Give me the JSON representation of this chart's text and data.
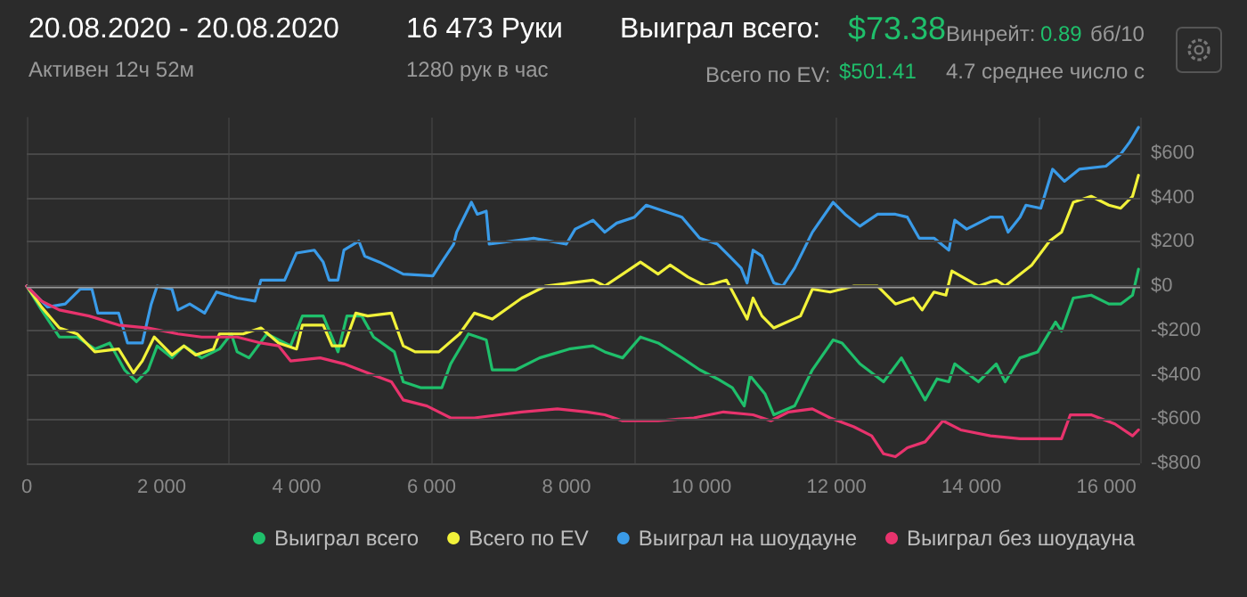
{
  "chart_data": {
    "type": "line",
    "title": "20.08.2020 - 20.08.2020",
    "subtitle": "Активен 12ч 52м",
    "annotations": [
      "16 473 Руки",
      "1280 рук в час",
      "Выиграл всего:",
      "$73.38",
      "Всего по EV:",
      "$501.41",
      "Винрейт:",
      "0.89",
      "бб/10",
      "4.7 среднее число с"
    ],
    "xlim": [
      0,
      16500
    ],
    "xticks": [
      0,
      {
        "value": 2000,
        "label": "2 000"
      },
      {
        "value": 4000,
        "label": "4 000"
      },
      {
        "value": 6000,
        "label": "6 000"
      },
      {
        "value": 8000,
        "label": "8 000"
      },
      {
        "value": 10000,
        "label": "10 000"
      },
      {
        "value": 12000,
        "label": "12 000"
      },
      {
        "value": 14000,
        "label": "14 000"
      },
      {
        "value": 16000,
        "label": "16 000"
      }
    ],
    "ylim": [
      -800,
      760
    ],
    "yticks": [
      {
        "value": -800,
        "label": "-$800"
      },
      {
        "value": -600,
        "label": "-$600"
      },
      {
        "value": -400,
        "label": "-$400"
      },
      {
        "value": -200,
        "label": "-$200"
      },
      {
        "value": 0,
        "label": "$0"
      },
      {
        "value": 200,
        "label": "$200"
      },
      {
        "value": 400,
        "label": "$400"
      },
      {
        "value": 600,
        "label": "$600"
      }
    ],
    "grid": true,
    "legend": "bottom",
    "line_style": "solid",
    "ref_lines": [
      {
        "axis": "y",
        "value": 0,
        "color": "#9a9a9a"
      }
    ],
    "series": [
      {
        "name": "Выиграл всего",
        "color": "#1fbf6b",
        "x": [
          0,
          220,
          483,
          747,
          1010,
          1230,
          1450,
          1626,
          1801,
          1933,
          2153,
          2329,
          2592,
          2856,
          3032,
          3119,
          3295,
          3559,
          3910,
          4086,
          4394,
          4613,
          4745,
          4965,
          5140,
          5448,
          5580,
          5844,
          6151,
          6283,
          6546,
          6810,
          6898,
          7249,
          7601,
          8040,
          8392,
          8567,
          8831,
          9095,
          9358,
          9710,
          9973,
          10237,
          10457,
          10633,
          10720,
          10940,
          11072,
          11380,
          11643,
          11951,
          12083,
          12347,
          12698,
          12962,
          13314,
          13490,
          13665,
          13753,
          14105,
          14368,
          14500,
          14720,
          14983,
          15247,
          15335,
          15510,
          15774,
          16037,
          16212,
          16388,
          16476
        ],
        "values": [
          0,
          -108,
          -230,
          -230,
          -284,
          -257,
          -378,
          -432,
          -378,
          -270,
          -324,
          -270,
          -324,
          -284,
          -216,
          -297,
          -324,
          -216,
          -270,
          -135,
          -135,
          -297,
          -135,
          -135,
          -230,
          -297,
          -432,
          -459,
          -459,
          -351,
          -216,
          -243,
          -378,
          -378,
          -324,
          -284,
          -270,
          -297,
          -324,
          -230,
          -257,
          -324,
          -378,
          -419,
          -459,
          -541,
          -405,
          -486,
          -581,
          -541,
          -378,
          -243,
          -257,
          -351,
          -432,
          -324,
          -514,
          -419,
          -432,
          -351,
          -432,
          -351,
          -432,
          -324,
          -297,
          -162,
          -203,
          -54,
          -41,
          -81,
          -81,
          -41,
          76
        ]
      },
      {
        "name": "Всего по EV",
        "color": "#f2f23a",
        "x": [
          0,
          220,
          483,
          747,
          1010,
          1362,
          1582,
          1713,
          1889,
          2153,
          2329,
          2504,
          2768,
          2856,
          3207,
          3471,
          3734,
          3998,
          4086,
          4394,
          4526,
          4701,
          4877,
          5053,
          5404,
          5580,
          5756,
          6107,
          6415,
          6634,
          6898,
          7337,
          7689,
          8040,
          8392,
          8567,
          8831,
          9095,
          9358,
          9534,
          9798,
          10061,
          10369,
          10676,
          10764,
          10896,
          11072,
          11467,
          11643,
          11907,
          12258,
          12610,
          12874,
          13138,
          13270,
          13446,
          13622,
          13710,
          14105,
          14368,
          14500,
          14895,
          15159,
          15335,
          15510,
          15774,
          16037,
          16212,
          16388,
          16476
        ],
        "values": [
          0,
          -95,
          -189,
          -216,
          -297,
          -284,
          -392,
          -338,
          -230,
          -311,
          -270,
          -311,
          -284,
          -216,
          -216,
          -189,
          -257,
          -284,
          -176,
          -176,
          -270,
          -270,
          -122,
          -135,
          -122,
          -270,
          -297,
          -297,
          -216,
          -122,
          -149,
          -54,
          0,
          14,
          27,
          0,
          54,
          108,
          54,
          95,
          41,
          0,
          27,
          -149,
          -54,
          -135,
          -189,
          -135,
          -14,
          -27,
          0,
          0,
          -81,
          -54,
          -108,
          -27,
          -41,
          68,
          0,
          27,
          0,
          95,
          203,
          243,
          378,
          405,
          365,
          351,
          405,
          500
        ]
      },
      {
        "name": "Выиграл на шоудауне",
        "color": "#3a9be8",
        "x": [
          0,
          308,
          571,
          791,
          967,
          1054,
          1362,
          1494,
          1713,
          1845,
          1933,
          2153,
          2241,
          2416,
          2636,
          2812,
          3119,
          3383,
          3471,
          3822,
          3998,
          4262,
          4394,
          4481,
          4613,
          4701,
          4921,
          5009,
          5228,
          5580,
          6019,
          6151,
          6327,
          6371,
          6590,
          6678,
          6810,
          6854,
          7513,
          7996,
          8128,
          8392,
          8567,
          8743,
          9007,
          9182,
          9446,
          9710,
          9973,
          10237,
          10413,
          10588,
          10676,
          10764,
          10896,
          11072,
          11204,
          11380,
          11643,
          11951,
          12127,
          12347,
          12610,
          12874,
          13050,
          13226,
          13446,
          13665,
          13753,
          13929,
          14281,
          14456,
          14544,
          14720,
          14808,
          15028,
          15203,
          15378,
          15598,
          15993,
          16212,
          16344,
          16476
        ],
        "values": [
          0,
          -95,
          -81,
          -14,
          -14,
          -122,
          -122,
          -257,
          -257,
          -81,
          0,
          -14,
          -108,
          -81,
          -122,
          -27,
          -54,
          -68,
          27,
          27,
          149,
          162,
          108,
          27,
          27,
          162,
          203,
          135,
          108,
          54,
          46,
          108,
          189,
          243,
          378,
          324,
          338,
          189,
          216,
          189,
          257,
          297,
          243,
          284,
          311,
          365,
          338,
          311,
          216,
          189,
          135,
          81,
          14,
          162,
          135,
          14,
          0,
          81,
          243,
          378,
          324,
          270,
          324,
          324,
          311,
          216,
          216,
          162,
          297,
          257,
          311,
          311,
          243,
          311,
          365,
          351,
          527,
          473,
          527,
          541,
          595,
          649,
          716
        ]
      },
      {
        "name": "Выиграл без шоудауна",
        "color": "#e8336d",
        "x": [
          0,
          220,
          483,
          923,
          1362,
          1801,
          2241,
          2592,
          3119,
          3471,
          3734,
          3910,
          4349,
          4701,
          5053,
          5404,
          5580,
          5931,
          6283,
          6634,
          7337,
          7864,
          8304,
          8567,
          8831,
          9358,
          9886,
          10325,
          10764,
          11028,
          11292,
          11643,
          11907,
          12258,
          12522,
          12698,
          12874,
          13050,
          13314,
          13578,
          13841,
          14281,
          14720,
          15335,
          15466,
          15774,
          16125,
          16388,
          16476
        ],
        "values": [
          0,
          -68,
          -108,
          -135,
          -176,
          -189,
          -216,
          -230,
          -230,
          -257,
          -270,
          -338,
          -324,
          -351,
          -392,
          -432,
          -514,
          -541,
          -595,
          -595,
          -568,
          -554,
          -568,
          -581,
          -608,
          -608,
          -595,
          -568,
          -581,
          -608,
          -568,
          -554,
          -595,
          -635,
          -676,
          -757,
          -770,
          -730,
          -703,
          -608,
          -649,
          -676,
          -689,
          -689,
          -581,
          -581,
          -622,
          -676,
          -649
        ]
      }
    ]
  }
}
